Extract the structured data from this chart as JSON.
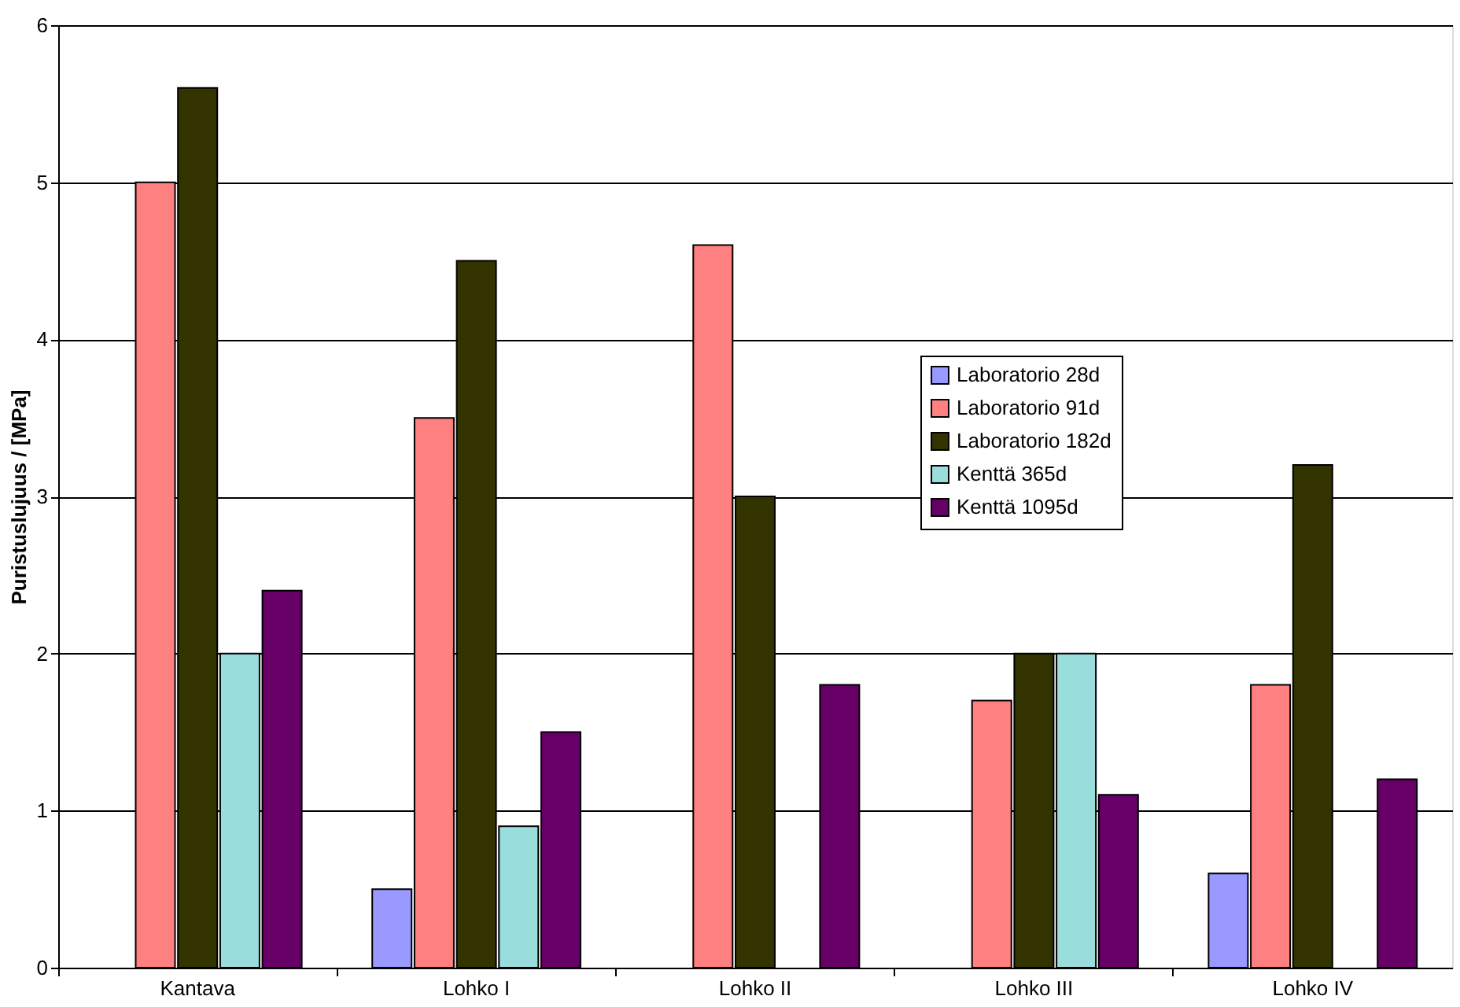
{
  "chart_data": {
    "type": "bar",
    "ylabel": "Puristuslujuus / [MPa]",
    "categories": [
      "Kantava",
      "Lohko I",
      "Lohko II",
      "Lohko III",
      "Lohko IV"
    ],
    "series": [
      {
        "name": "Laboratorio 28d",
        "color": "#9999ff",
        "values": [
          null,
          0.5,
          null,
          null,
          0.6
        ]
      },
      {
        "name": "Laboratorio 91d",
        "color": "#ff8080",
        "values": [
          5.0,
          3.5,
          4.6,
          1.7,
          1.8
        ]
      },
      {
        "name": "Laboratorio 182d",
        "color": "#333300",
        "values": [
          5.6,
          4.5,
          3.0,
          2.0,
          3.2
        ]
      },
      {
        "name": "Kenttä 365d",
        "color": "#99dddd",
        "values": [
          2.0,
          0.9,
          null,
          2.0,
          null
        ]
      },
      {
        "name": "Kenttä 1095d",
        "color": "#660066",
        "values": [
          2.4,
          1.5,
          1.8,
          1.1,
          1.2
        ]
      }
    ],
    "ylim": [
      0,
      6
    ],
    "yticks": [
      0,
      1,
      2,
      3,
      4,
      5,
      6
    ],
    "grid": "y",
    "legend": "top right"
  }
}
